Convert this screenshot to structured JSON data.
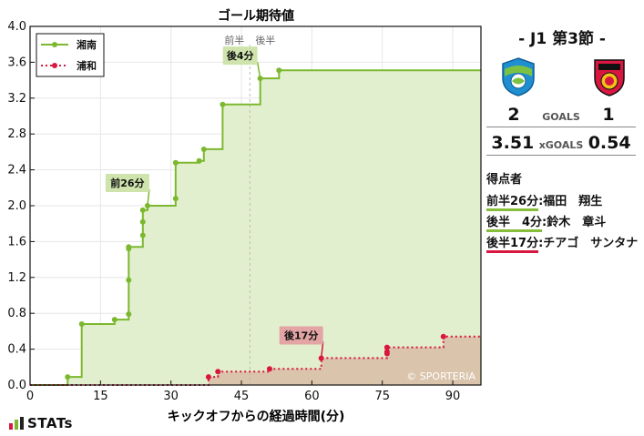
{
  "chart_data": {
    "type": "line",
    "title": "ゴール期待値",
    "xlabel": "キックオフからの経過時間(分)",
    "ylabel": "",
    "xlim": [
      0,
      96
    ],
    "ylim": [
      0,
      4.0
    ],
    "xticks": [
      0,
      15,
      30,
      45,
      60,
      75,
      90
    ],
    "yticks": [
      0.0,
      0.4,
      0.8,
      1.2,
      1.6,
      2.0,
      2.4,
      2.8,
      3.2,
      3.6,
      4.0
    ],
    "grid": true,
    "legend_position": "top-left",
    "half_line_x": 46.8,
    "half_labels": {
      "first": "前半",
      "second": "後半"
    },
    "watermark": "© SPORTERIA",
    "series": [
      {
        "name": "湘南",
        "color": "#7cb82f",
        "fill": "#e2efcf",
        "line_style": "solid",
        "shots": [
          {
            "x": 8,
            "y": 0.09
          },
          {
            "x": 11,
            "y": 0.68
          },
          {
            "x": 18,
            "y": 0.73
          },
          {
            "x": 21,
            "y": 0.79
          },
          {
            "x": 21,
            "y": 1.17
          },
          {
            "x": 21,
            "y": 1.52
          },
          {
            "x": 21,
            "y": 1.54
          },
          {
            "x": 24,
            "y": 1.67
          },
          {
            "x": 24,
            "y": 1.82
          },
          {
            "x": 24,
            "y": 1.95
          },
          {
            "x": 25,
            "y": 2.0
          },
          {
            "x": 31,
            "y": 2.08
          },
          {
            "x": 31,
            "y": 2.48
          },
          {
            "x": 36,
            "y": 2.5
          },
          {
            "x": 37,
            "y": 2.63
          },
          {
            "x": 41,
            "y": 3.13
          },
          {
            "x": 49,
            "y": 3.42
          },
          {
            "x": 53,
            "y": 3.51
          }
        ],
        "end": 3.51
      },
      {
        "name": "浦和",
        "color": "#d9163f",
        "fill": "#d9bfa6",
        "line_style": "dotted",
        "shots": [
          {
            "x": 38,
            "y": 0.09
          },
          {
            "x": 40,
            "y": 0.15
          },
          {
            "x": 51,
            "y": 0.18
          },
          {
            "x": 62,
            "y": 0.3
          },
          {
            "x": 76,
            "y": 0.35
          },
          {
            "x": 76,
            "y": 0.37
          },
          {
            "x": 76,
            "y": 0.42
          },
          {
            "x": 88,
            "y": 0.54
          }
        ],
        "end": 0.54
      }
    ],
    "annotations": [
      {
        "label": "前26分",
        "x": 25,
        "y": 2.0,
        "series": 0
      },
      {
        "label": "後4分",
        "x": 49,
        "y": 3.42,
        "series": 0
      },
      {
        "label": "後17分",
        "x": 62,
        "y": 0.3,
        "series": 1
      }
    ]
  },
  "match": {
    "title": "- J1 第3節 -",
    "home": {
      "name": "湘南",
      "goals": "2",
      "xg": "3.51",
      "crest_icon": "shonan-bellmare-crest"
    },
    "away": {
      "name": "浦和",
      "goals": "1",
      "xg": "0.54",
      "crest_icon": "urawa-reds-crest"
    },
    "goals_label": "GOALS",
    "xg_label": "xGOALS"
  },
  "scorers_title": "得点者",
  "scorers": [
    {
      "minute": "前半26分",
      "name": ":福田　翔生",
      "team": "home"
    },
    {
      "minute": "後半　4分",
      "name": ":鈴木　章斗",
      "team": "home"
    },
    {
      "minute": "後半17分",
      "name": ":チアゴ　サンタナ",
      "team": "away"
    }
  ],
  "brand": "STATs"
}
